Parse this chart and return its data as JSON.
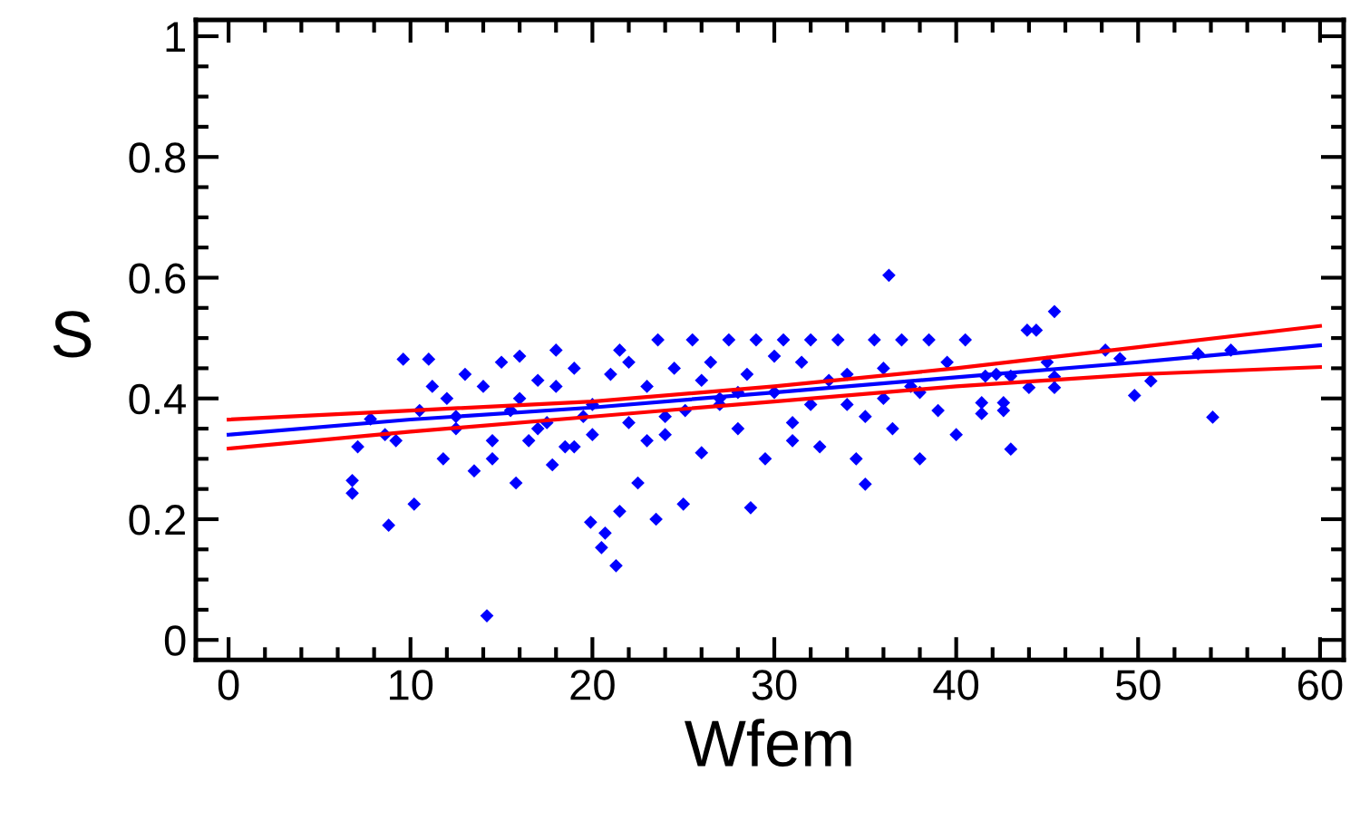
{
  "chart_data": {
    "type": "scatter",
    "xlabel": "Wfem",
    "ylabel": "S",
    "xlim": [
      -1.8,
      61.3
    ],
    "ylim": [
      -0.033,
      1.027
    ],
    "xticks": [
      0,
      10,
      20,
      30,
      40,
      50,
      60
    ],
    "yticks": [
      0,
      0.2,
      0.4,
      0.6,
      0.8,
      1
    ],
    "grid": false,
    "legend": false,
    "series": [
      {
        "marker": "diamond",
        "color": "#0000ff",
        "x": [
          6.8,
          6.8,
          7.1,
          7.8,
          8.6,
          8.8,
          9.2,
          9.6,
          10.2,
          10.5,
          11.0,
          11.2,
          11.8,
          12.0,
          12.5,
          13.0,
          13.5,
          14.2,
          14.0,
          14.5,
          15.0,
          15.5,
          15.8,
          16.0,
          16.5,
          17.0,
          17.5,
          17.8,
          18.0,
          18.5,
          19.0,
          19.5,
          19.9,
          20.0,
          20.5,
          20.7,
          21.0,
          21.3,
          21.5,
          21.5,
          22.0,
          22.5,
          23.0,
          23.5,
          23.6,
          24.0,
          24.5,
          25.0,
          25.1,
          25.5,
          26.0,
          26.5,
          27.0,
          27.5,
          28.0,
          28.5,
          28.7,
          29.0,
          29.5,
          30.0,
          30.5,
          31.0,
          31.5,
          32.0,
          32.5,
          33.0,
          33.5,
          34.0,
          34.5,
          35.0,
          35.5,
          36.0,
          36.3,
          36.5,
          37.0,
          37.5,
          38.0,
          38.5,
          39.0,
          39.5,
          40.0,
          40.5,
          41.4,
          41.4,
          41.6,
          42.2,
          42.6,
          42.6,
          43.0,
          43.0,
          43.9,
          44.0,
          44.4,
          45.0,
          45.4,
          45.4,
          45.4,
          48.2,
          49.0,
          49.8,
          50.7,
          53.3,
          54.1,
          55.1,
          16.0,
          18.0,
          20.0,
          22.0,
          24.0,
          26.0,
          28.0,
          30.0,
          32.0,
          34.0,
          36.0,
          38.0,
          17.0,
          19.0,
          23.0,
          27.0,
          31.0,
          35.0,
          12.5,
          14.5
        ],
        "values": [
          0.264,
          0.243,
          0.32,
          0.366,
          0.34,
          0.19,
          0.33,
          0.465,
          0.225,
          0.38,
          0.465,
          0.42,
          0.3,
          0.4,
          0.35,
          0.44,
          0.28,
          0.04,
          0.42,
          0.3,
          0.46,
          0.38,
          0.26,
          0.47,
          0.33,
          0.43,
          0.36,
          0.29,
          0.48,
          0.32,
          0.45,
          0.37,
          0.195,
          0.34,
          0.153,
          0.177,
          0.44,
          0.123,
          0.213,
          0.48,
          0.36,
          0.26,
          0.42,
          0.2,
          0.497,
          0.34,
          0.45,
          0.225,
          0.38,
          0.497,
          0.31,
          0.46,
          0.4,
          0.497,
          0.35,
          0.44,
          0.219,
          0.497,
          0.3,
          0.41,
          0.497,
          0.36,
          0.46,
          0.497,
          0.32,
          0.43,
          0.497,
          0.39,
          0.3,
          0.258,
          0.497,
          0.45,
          0.604,
          0.35,
          0.497,
          0.42,
          0.3,
          0.497,
          0.38,
          0.46,
          0.34,
          0.497,
          0.393,
          0.375,
          0.437,
          0.44,
          0.393,
          0.38,
          0.316,
          0.437,
          0.513,
          0.418,
          0.513,
          0.46,
          0.544,
          0.436,
          0.418,
          0.48,
          0.466,
          0.405,
          0.429,
          0.474,
          0.369,
          0.48,
          0.4,
          0.42,
          0.39,
          0.46,
          0.37,
          0.43,
          0.41,
          0.47,
          0.39,
          0.44,
          0.4,
          0.41,
          0.35,
          0.32,
          0.33,
          0.39,
          0.33,
          0.37,
          0.37,
          0.33
        ]
      },
      {
        "type": "line",
        "color": "#0000ff",
        "x": [
          0,
          10,
          20,
          30,
          40,
          50,
          60
        ],
        "values": [
          0.34,
          0.365,
          0.385,
          0.41,
          0.435,
          0.46,
          0.488
        ]
      },
      {
        "type": "line",
        "color": "#ff0000",
        "x": [
          0,
          10,
          20,
          30,
          40,
          50,
          60
        ],
        "values": [
          0.365,
          0.38,
          0.395,
          0.42,
          0.45,
          0.485,
          0.52
        ]
      },
      {
        "type": "line",
        "color": "#ff0000",
        "x": [
          0,
          10,
          20,
          30,
          40,
          50,
          60
        ],
        "values": [
          0.317,
          0.345,
          0.37,
          0.395,
          0.42,
          0.44,
          0.452
        ]
      }
    ]
  }
}
